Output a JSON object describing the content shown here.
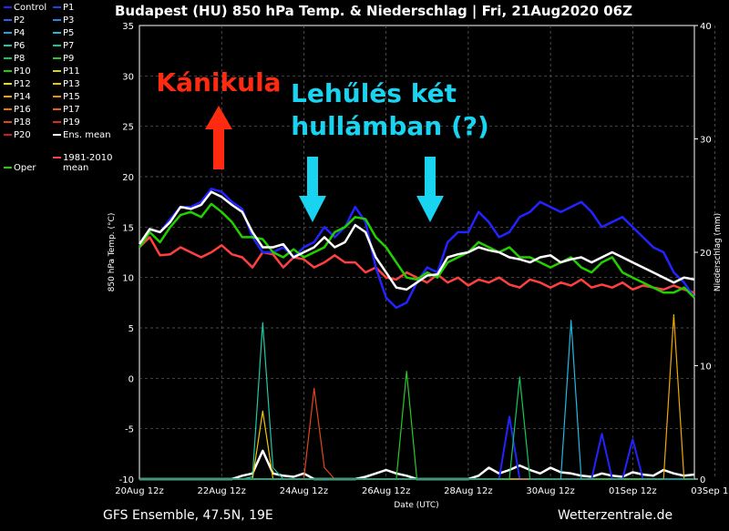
{
  "chart_data": {
    "type": "line",
    "title": "Budapest  (HU)  850 hPa Temp. & Niederschlag | Fri, 21Aug2020 06Z",
    "xlabel": "Date (UTC)",
    "ylabel": "850 hPa Temp. (°C)",
    "y2label": "Niederschlag (mm)",
    "ylim": [
      -10,
      35
    ],
    "y2lim": [
      0,
      40
    ],
    "yticks": [
      "35",
      "30",
      "25",
      "20",
      "15",
      "10",
      "5",
      "0",
      "-5",
      "-10"
    ],
    "y2ticks": [
      "40",
      "30",
      "20",
      "10",
      "0"
    ],
    "xticks": [
      "20Aug 12z",
      "22Aug 12z",
      "24Aug 12z",
      "26Aug 12z",
      "28Aug 12z",
      "30Aug 12z",
      "01Sep 12z",
      "03Sep 12z"
    ],
    "grid": true,
    "legend_position": "left-outside",
    "legend": [
      {
        "name": "Control",
        "color": "#2323ff"
      },
      {
        "name": "P1",
        "color": "#1e44e6"
      },
      {
        "name": "P2",
        "color": "#2f5ef0"
      },
      {
        "name": "P3",
        "color": "#2a86e6"
      },
      {
        "name": "P4",
        "color": "#28a0e8"
      },
      {
        "name": "P5",
        "color": "#22b8e0"
      },
      {
        "name": "P6",
        "color": "#1ec8a6"
      },
      {
        "name": "P7",
        "color": "#14c88a"
      },
      {
        "name": "P8",
        "color": "#12c858"
      },
      {
        "name": "P9",
        "color": "#28c828"
      },
      {
        "name": "P10",
        "color": "#22d000"
      },
      {
        "name": "P11",
        "color": "#c8e000"
      },
      {
        "name": "P12",
        "color": "#f0e000"
      },
      {
        "name": "P13",
        "color": "#f0c800"
      },
      {
        "name": "P14",
        "color": "#f0a800"
      },
      {
        "name": "P15",
        "color": "#f09000"
      },
      {
        "name": "P16",
        "color": "#e87800"
      },
      {
        "name": "P17",
        "color": "#e86020"
      },
      {
        "name": "P18",
        "color": "#e04818"
      },
      {
        "name": "P19",
        "color": "#d83018"
      },
      {
        "name": "P20",
        "color": "#c82020"
      },
      {
        "name": "Ens. mean",
        "color": "#ffffff"
      },
      {
        "name": "1981-2010\nmean",
        "color": "#ff4040"
      },
      {
        "name": "Oper",
        "color": "#22d000"
      }
    ],
    "x_start_label": "20Aug 12z",
    "series": [
      {
        "name": "Ens. mean",
        "color": "#ffffff",
        "width": 2.5,
        "values": [
          13.3,
          14.8,
          14.5,
          15.5,
          17.0,
          16.8,
          17.2,
          18.5,
          18.0,
          17.2,
          16.5,
          14.5,
          13.0,
          13.0,
          13.3,
          12.0,
          12.5,
          13.0,
          14.0,
          13.0,
          13.5,
          15.2,
          14.5,
          12.0,
          10.5,
          9.0,
          8.8,
          9.5,
          10.2,
          10.3,
          12.0,
          12.3,
          12.5,
          13.0,
          12.7,
          12.5,
          12.0,
          11.8,
          11.5,
          12.0,
          12.2,
          11.5,
          11.8,
          12.0,
          11.5,
          12.0,
          12.5,
          12.0,
          11.5,
          11.0,
          10.5,
          10.0,
          9.5,
          10.0,
          9.8
        ]
      },
      {
        "name": "1981-2010 mean",
        "color": "#ff4040",
        "width": 2.5,
        "values": [
          13.0,
          14.0,
          12.2,
          12.3,
          13.0,
          12.5,
          12.0,
          12.5,
          13.2,
          12.3,
          12.0,
          11.0,
          12.5,
          12.3,
          11.0,
          12.0,
          11.8,
          11.0,
          11.5,
          12.2,
          11.5,
          11.5,
          10.5,
          11.0,
          10.0,
          9.8,
          10.5,
          10.0,
          9.5,
          10.3,
          9.5,
          10.0,
          9.2,
          9.8,
          9.5,
          10.0,
          9.3,
          9.0,
          9.8,
          9.5,
          9.0,
          9.5,
          9.2,
          9.8,
          9.0,
          9.3,
          9.0,
          9.5,
          8.8,
          9.2,
          9.0,
          8.8,
          9.2,
          8.8,
          8.5
        ]
      },
      {
        "name": "Oper",
        "color": "#22d000",
        "width": 2.5,
        "values": [
          13.0,
          14.5,
          13.5,
          15.0,
          16.2,
          16.5,
          16.0,
          17.3,
          16.5,
          15.5,
          14.0,
          14.0,
          13.8,
          12.5,
          12.0,
          12.8,
          12.0,
          12.5,
          13.0,
          14.5,
          15.0,
          16.0,
          15.8,
          14.0,
          13.0,
          11.5,
          10.0,
          9.8,
          10.5,
          10.0,
          11.5,
          12.0,
          12.5,
          13.5,
          13.0,
          12.5,
          13.0,
          12.0,
          12.0,
          11.5,
          11.0,
          11.5,
          12.0,
          11.0,
          10.5,
          11.5,
          12.0,
          10.5,
          10.0,
          9.5,
          9.0,
          8.5,
          8.5,
          9.0,
          8.0
        ]
      },
      {
        "name": "Control",
        "color": "#2323ff",
        "width": 2.5,
        "values": [
          13.2,
          14.8,
          14.5,
          15.8,
          17.0,
          17.0,
          17.5,
          18.8,
          18.5,
          17.5,
          16.8,
          14.0,
          12.5,
          12.5,
          13.0,
          12.0,
          13.0,
          13.5,
          15.0,
          14.0,
          15.0,
          17.0,
          15.5,
          11.0,
          8.0,
          7.0,
          7.5,
          9.5,
          11.0,
          10.5,
          13.5,
          14.5,
          14.5,
          16.5,
          15.5,
          14.0,
          14.5,
          16.0,
          16.5,
          17.5,
          17.0,
          16.5,
          17.0,
          17.5,
          16.5,
          15.0,
          15.5,
          16.0,
          15.0,
          14.0,
          13.0,
          12.5,
          10.5,
          9.5,
          8.0
        ]
      }
    ],
    "precip_series": [
      {
        "name": "Ens. mean",
        "color": "#ffffff",
        "width": 2.5,
        "values": [
          0,
          0,
          0,
          0,
          0,
          0,
          0,
          0,
          0,
          0,
          0.3,
          0.5,
          2.5,
          0.5,
          0.3,
          0.2,
          0.5,
          0,
          0,
          0,
          0,
          0,
          0.2,
          0.5,
          0.8,
          0.5,
          0.3,
          0,
          0,
          0,
          0,
          0,
          0,
          0.3,
          1.0,
          0.5,
          0.8,
          1.2,
          0.8,
          0.5,
          1.0,
          0.6,
          0.5,
          0.3,
          0.2,
          0.5,
          0.3,
          0.2,
          0.6,
          0.4,
          0.3,
          0.8,
          0.5,
          0.3,
          0.4
        ]
      },
      {
        "name": "P6",
        "color": "#1ec8a6",
        "width": 1.2,
        "values": [
          0,
          0,
          0,
          0,
          0,
          0,
          0,
          0,
          0,
          0,
          0,
          0.2,
          13.8,
          1.0,
          0,
          0,
          0,
          0,
          0,
          0,
          0,
          0,
          0,
          0,
          0,
          0,
          0,
          0,
          0,
          0,
          0,
          0,
          0,
          0,
          0,
          0,
          0,
          0,
          0,
          0,
          0,
          0,
          0,
          0,
          0,
          0,
          0,
          0,
          0,
          0,
          0,
          0,
          0,
          0,
          0
        ]
      },
      {
        "name": "P13",
        "color": "#f0c800",
        "width": 1.2,
        "values": [
          0,
          0,
          0,
          0,
          0,
          0,
          0,
          0,
          0,
          0,
          0,
          0,
          6.0,
          0,
          0,
          0,
          0,
          0,
          0,
          0,
          0,
          0,
          0,
          0,
          0,
          0,
          0,
          0,
          0,
          0,
          0,
          0,
          0,
          0,
          0,
          0,
          0,
          0,
          0,
          0,
          0,
          0,
          0,
          0,
          0,
          0,
          0,
          0,
          0,
          0,
          0,
          0,
          0,
          0,
          0
        ]
      },
      {
        "name": "P18",
        "color": "#e04818",
        "width": 1.2,
        "values": [
          0,
          0,
          0,
          0,
          0,
          0,
          0,
          0,
          0,
          0,
          0,
          0,
          0,
          0,
          0,
          0,
          0,
          8.0,
          1.0,
          0,
          0,
          0,
          0,
          0,
          0,
          0,
          0,
          0,
          0,
          0,
          0,
          0,
          0,
          0,
          0,
          0,
          0,
          0,
          0,
          0,
          0,
          0,
          0,
          0,
          0,
          0,
          0,
          0,
          0,
          0,
          0,
          0,
          0,
          0,
          0
        ]
      },
      {
        "name": "P9",
        "color": "#28c828",
        "width": 1.2,
        "values": [
          0,
          0,
          0,
          0,
          0,
          0,
          0,
          0,
          0,
          0,
          0,
          0,
          0,
          0,
          0,
          0,
          0,
          0,
          0,
          0,
          0,
          0,
          0,
          0,
          0,
          0,
          9.5,
          0,
          0,
          0,
          0,
          0,
          0,
          0,
          0,
          0,
          0,
          0,
          0,
          0,
          0,
          0,
          0,
          0,
          0,
          0,
          0,
          0,
          0,
          0,
          0,
          0,
          0,
          0,
          0
        ]
      },
      {
        "name": "Control",
        "color": "#2323ff",
        "width": 2.0,
        "values": [
          0,
          0,
          0,
          0,
          0,
          0,
          0,
          0,
          0,
          0,
          0,
          0,
          0,
          0,
          0,
          0,
          0,
          0,
          0,
          0,
          0,
          0,
          0,
          0,
          0,
          0,
          0,
          0,
          0,
          0,
          0,
          0,
          0,
          0,
          0,
          0,
          5.5,
          0,
          0,
          0,
          0,
          0,
          0,
          0,
          0,
          4.0,
          0,
          0,
          3.5,
          0,
          0,
          0,
          0,
          0,
          0
        ]
      },
      {
        "name": "P5",
        "color": "#22b8e0",
        "width": 1.2,
        "values": [
          0,
          0,
          0,
          0,
          0,
          0,
          0,
          0,
          0,
          0,
          0,
          0,
          0,
          0,
          0,
          0,
          0,
          0,
          0,
          0,
          0,
          0,
          0,
          0,
          0,
          0,
          0,
          0,
          0,
          0,
          0,
          0,
          0,
          0,
          0,
          0,
          0,
          0,
          0,
          0,
          0,
          0,
          14.0,
          0,
          0,
          0,
          0,
          0,
          0,
          0,
          0,
          0,
          0,
          0,
          0
        ]
      },
      {
        "name": "P14",
        "color": "#f0a800",
        "width": 1.2,
        "values": [
          0,
          0,
          0,
          0,
          0,
          0,
          0,
          0,
          0,
          0,
          0,
          0,
          0,
          0,
          0,
          0,
          0,
          0,
          0,
          0,
          0,
          0,
          0,
          0,
          0,
          0,
          0,
          0,
          0,
          0,
          0,
          0,
          0,
          0,
          0,
          0,
          0,
          0,
          0,
          0,
          0,
          0,
          0,
          0,
          0,
          0,
          0,
          0,
          0,
          0,
          0,
          0,
          14.5,
          0,
          0
        ]
      },
      {
        "name": "P8",
        "color": "#12c858",
        "width": 1.2,
        "values": [
          0,
          0,
          0,
          0,
          0,
          0,
          0,
          0,
          0,
          0,
          0,
          0,
          0,
          0,
          0,
          0,
          0,
          0,
          0,
          0,
          0,
          0,
          0,
          0,
          0,
          0,
          0,
          0,
          0,
          0,
          0,
          0,
          0,
          0,
          0,
          0,
          0,
          9.0,
          0,
          0,
          0,
          0,
          0,
          0,
          0,
          0,
          0,
          0,
          0,
          0,
          0,
          0,
          0,
          0,
          0
        ]
      }
    ]
  },
  "annotations": {
    "red_text": "Kánikula",
    "cyan_text_line1": "Lehűlés két",
    "cyan_text_line2": "hullámban (?)"
  },
  "footer": {
    "left": "GFS Ensemble, 47.5N, 19E",
    "right": "Wetterzentrale.de"
  }
}
